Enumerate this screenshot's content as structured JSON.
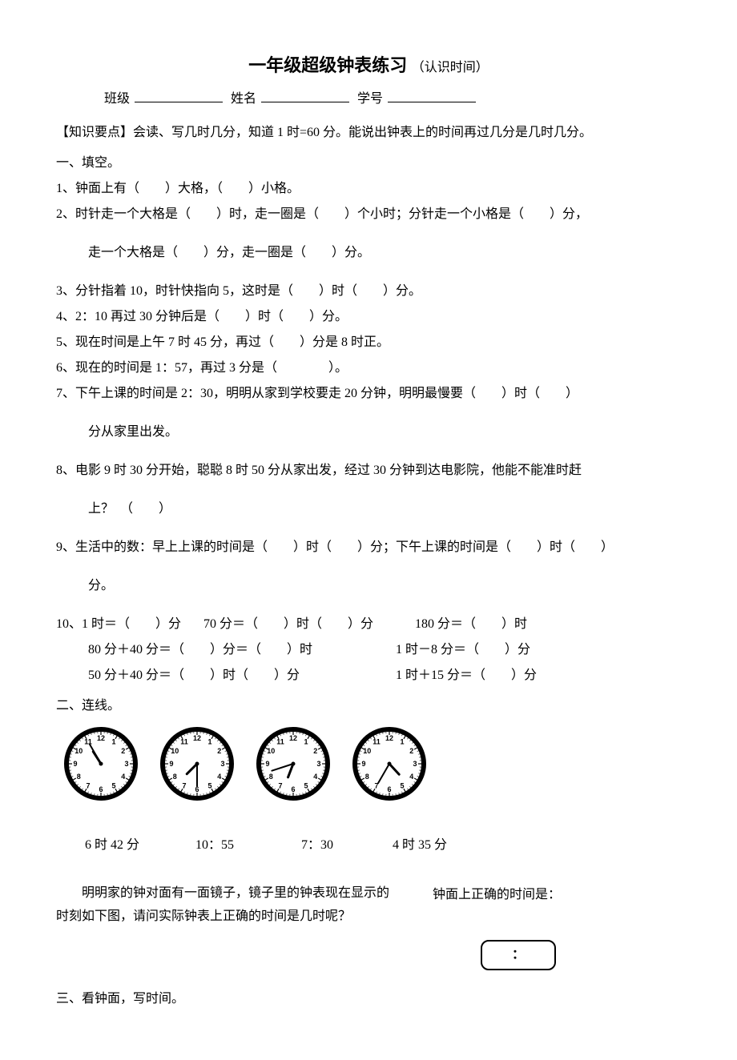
{
  "title_main": "一年级超级钟表练习",
  "title_sub": "（认识时间）",
  "info": {
    "class_label": "班级",
    "name_label": "姓名",
    "id_label": "学号"
  },
  "tip": "【知识要点】会读、写几时几分，知道 1 时=60 分。能说出钟表上的时间再过几分是几时几分。",
  "sec1": "一、填空。",
  "q1": "1、钟面上有（　　）大格，（　　）小格。",
  "q2": "2、时针走一个大格是（　　）时，走一圈是（　　）个小时；分针走一个小格是（　　）分，",
  "q2b": "走一个大格是（　　）分，走一圈是（　　）分。",
  "q3": "3、分针指着 10，时针快指向 5，这时是（　　）时（　　）分。",
  "q4": "4、2：10 再过 30 分钟后是（　　）时（　　）分。",
  "q5": "5、现在时间是上午 7 时 45 分，再过（　　）分是 8 时正。",
  "q6": "6、现在的时间是 1：57，再过 3 分是（　　　　）。",
  "q7": "7、下午上课的时间是 2：30，明明从家到学校要走 20 分钟，明明最慢要（　　）时（　　）",
  "q7b": "分从家里出发。",
  "q8": "8、电影 9 时 30 分开始，聪聪 8 时 50 分从家出发，经过 30 分钟到达电影院，他能不能准时赶",
  "q8b": "上？　（　　）",
  "q9": "9、生活中的数：早上上课的时间是（　　）时（　　）分；下午上课的时间是（　　）时（　　）",
  "q9b": "分。",
  "q10a": "10、1 时＝（　　）分",
  "q10b": "70 分＝（　　）时（　　）分",
  "q10c": "180 分＝（　　）时",
  "q10d": "80 分＋40 分＝（　　）分＝（　　）时",
  "q10e": "1 时－8 分＝（　　）分",
  "q10f": "50 分＋40 分＝（　　）时（　　）分",
  "q10g": "1 时＋15 分＝（　　）分",
  "sec2": "二、连线。",
  "clocks": [
    {
      "hour": 10,
      "minute": 55
    },
    {
      "hour": 7,
      "minute": 30
    },
    {
      "hour": 6,
      "minute": 42
    },
    {
      "hour": 4,
      "minute": 35
    }
  ],
  "times": [
    "6 时 42 分",
    "10：55",
    "7：30",
    "4 时 35 分"
  ],
  "mirror_text": "明明家的钟对面有一面镜子，镜子里的钟表现在显示的时刻如下图，请问实际钟表上正确的时间是几时呢？",
  "mirror_right_label": "钟面上正确的时间是：",
  "answer_box": "：",
  "sec3": "三、看钟面，写时间。",
  "clock_style": {
    "size": 92,
    "outer_stroke": "#000",
    "outer_stroke_w": 6,
    "inner_bg": "#fff",
    "number_font": 9,
    "hour_hand_len": 18,
    "min_hand_len": 28,
    "hand_stroke": "#000",
    "hour_w": 3,
    "min_w": 2
  }
}
